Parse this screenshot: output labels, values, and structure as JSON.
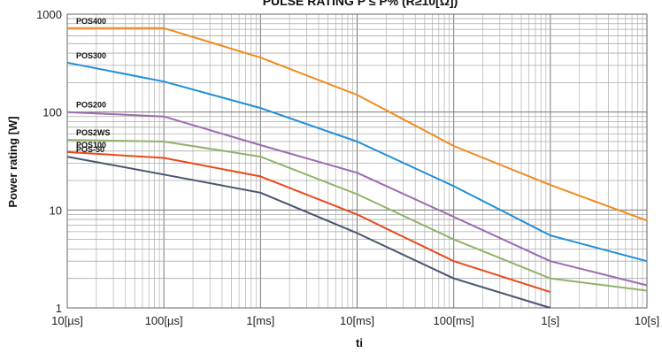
{
  "chart_data": {
    "type": "line",
    "title": "PULSE RATING P ≤ P% (R≥10[Ω])",
    "xlabel": "ti",
    "ylabel": "Power rating [W]",
    "x_scale": "log",
    "y_scale": "log",
    "xlim": [
      "10[µs]",
      "10[s]"
    ],
    "ylim": [
      1,
      1000
    ],
    "grid": true,
    "x_ticks": [
      {
        "label": "10[µs]",
        "seconds": 1e-05
      },
      {
        "label": "100[µs]",
        "seconds": 0.0001
      },
      {
        "label": "1[ms]",
        "seconds": 0.001
      },
      {
        "label": "10[ms]",
        "seconds": 0.01
      },
      {
        "label": "100[ms]",
        "seconds": 0.1
      },
      {
        "label": "1[s]",
        "seconds": 1
      },
      {
        "label": "10[s]",
        "seconds": 10
      }
    ],
    "y_ticks": [
      {
        "label": "1",
        "value": 1
      },
      {
        "label": "10",
        "value": 10
      },
      {
        "label": "100",
        "value": 100
      },
      {
        "label": "1000",
        "value": 1000
      }
    ],
    "series": [
      {
        "name": "POS400",
        "color": "#f28a1e",
        "points": [
          [
            1e-05,
            720
          ],
          [
            0.0001,
            720
          ],
          [
            0.001,
            360
          ],
          [
            0.01,
            150
          ],
          [
            0.1,
            45
          ],
          [
            1,
            18
          ],
          [
            10,
            7.8
          ]
        ]
      },
      {
        "name": "POS300",
        "color": "#1f8fd6",
        "points": [
          [
            1e-05,
            320
          ],
          [
            0.0001,
            205
          ],
          [
            0.001,
            110
          ],
          [
            0.01,
            50
          ],
          [
            0.1,
            17.5
          ],
          [
            1,
            5.5
          ],
          [
            10,
            3.0
          ]
        ]
      },
      {
        "name": "POS200",
        "color": "#9b6bb0",
        "points": [
          [
            1e-05,
            100
          ],
          [
            0.0001,
            90
          ],
          [
            0.001,
            46
          ],
          [
            0.01,
            24
          ],
          [
            0.1,
            8.5
          ],
          [
            1,
            3.0
          ],
          [
            10,
            1.7
          ]
        ]
      },
      {
        "name": "POS2WS",
        "color": "#8fb36a",
        "points": [
          [
            1e-05,
            52
          ],
          [
            0.0001,
            50
          ],
          [
            0.001,
            35
          ],
          [
            0.01,
            14.5
          ],
          [
            0.1,
            5.0
          ],
          [
            1,
            2.0
          ],
          [
            10,
            1.5
          ]
        ]
      },
      {
        "name": "POS100",
        "color": "#e84a1a",
        "points": [
          [
            1e-05,
            39
          ],
          [
            0.0001,
            34
          ],
          [
            0.001,
            22
          ],
          [
            0.01,
            9.0
          ],
          [
            0.1,
            3.0
          ],
          [
            1,
            1.45
          ]
        ]
      },
      {
        "name": "POS-50",
        "color": "#4a5470",
        "points": [
          [
            1e-05,
            35
          ],
          [
            0.0001,
            23
          ],
          [
            0.001,
            15
          ],
          [
            0.01,
            5.8
          ],
          [
            0.1,
            2.0
          ],
          [
            1,
            1.0
          ]
        ]
      }
    ]
  }
}
